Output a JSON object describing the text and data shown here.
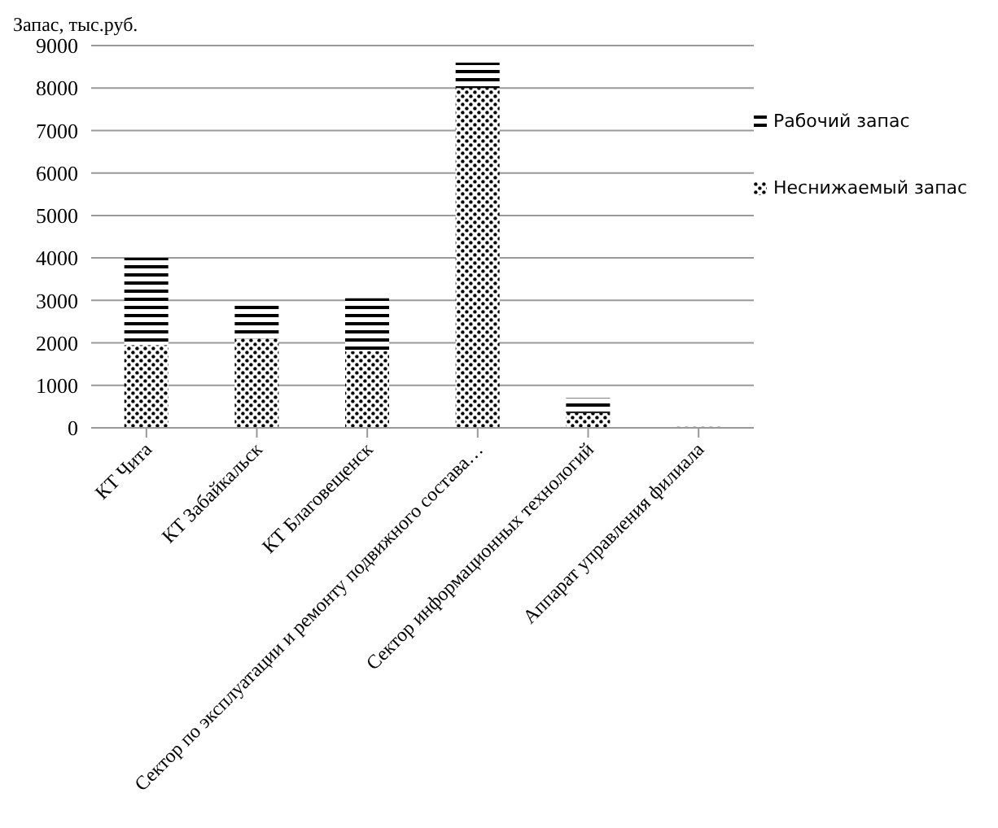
{
  "chart_data": {
    "type": "bar",
    "stacked": true,
    "ylabel": "Запас, тыс.руб.",
    "categories": [
      "КТ Чита",
      "КТ Забайкальск",
      "КТ Благовещенск",
      "Сектор по эксплуатации  и ремонту подвижного состава…",
      "Сектор информационных технологий",
      "Аппарат  управления филиала"
    ],
    "series": [
      {
        "name": "Неснижаемый запас",
        "color": "#000000",
        "values": [
          1950,
          2100,
          1800,
          8000,
          350,
          30
        ]
      },
      {
        "name": "Рабочий запас",
        "color": "#000000",
        "values": [
          2050,
          800,
          1250,
          600,
          350,
          20
        ]
      }
    ],
    "ylim": [
      0,
      9000
    ],
    "yticks": [
      0,
      1000,
      2000,
      3000,
      4000,
      5000,
      6000,
      7000,
      8000,
      9000
    ],
    "grid": "y",
    "legend": "right"
  }
}
